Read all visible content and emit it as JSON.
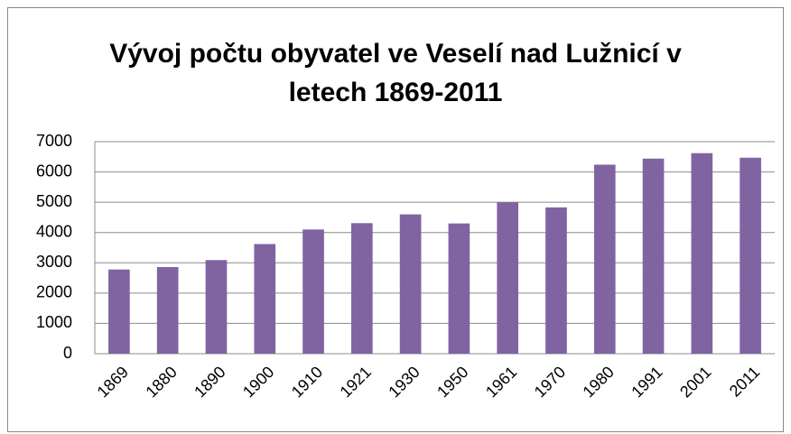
{
  "chart_data": {
    "type": "bar",
    "title": "Vývoj počtu obyvatel ve Veselí nad Lužnicí v letech 1869-2011",
    "categories": [
      "1869",
      "1880",
      "1890",
      "1900",
      "1910",
      "1921",
      "1930",
      "1950",
      "1961",
      "1970",
      "1980",
      "1991",
      "2001",
      "2011"
    ],
    "values": [
      2780,
      2860,
      3090,
      3620,
      4100,
      4310,
      4600,
      4300,
      5000,
      4830,
      6240,
      6440,
      6620,
      6470
    ],
    "color": "#8064a2",
    "ylim": [
      0,
      7000
    ],
    "yticks": [
      0,
      1000,
      2000,
      3000,
      4000,
      5000,
      6000,
      7000
    ],
    "grid": true
  }
}
